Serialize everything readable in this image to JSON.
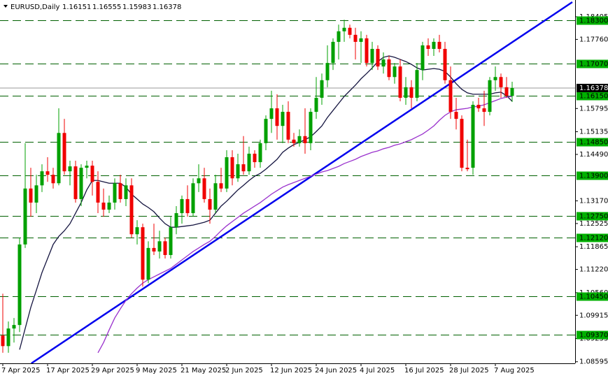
{
  "chart_data": {
    "type": "candlestick",
    "title": "EURUSD,Daily",
    "categories": [
      "7 Apr 2025",
      null,
      null,
      null,
      null,
      null,
      null,
      null,
      "17 Apr 2025",
      null,
      null,
      null,
      null,
      null,
      null,
      null,
      "29 Apr 2025",
      null,
      null,
      null,
      null,
      null,
      null,
      null,
      "9 May 2025",
      null,
      null,
      null,
      null,
      null,
      null,
      null,
      "21 May 2025",
      null,
      null,
      null,
      null,
      null,
      null,
      null,
      "2 Jun 2025",
      null,
      null,
      null,
      null,
      null,
      null,
      null,
      "12 Jun 2025",
      null,
      null,
      null,
      null,
      null,
      null,
      null,
      "24 Jun 2025",
      null,
      null,
      null,
      null,
      null,
      null,
      null,
      "4 Jul 2025",
      null,
      null,
      null,
      null,
      null,
      null,
      null,
      "16 Jul 2025",
      null,
      null,
      null,
      null,
      null,
      null,
      null,
      "28 Jul 2025",
      null,
      null,
      null,
      null,
      null,
      null,
      null,
      "7 Aug 2025",
      null,
      null,
      null
    ],
    "open": [
      1.0934,
      1.0904,
      1.0954,
      1.0964,
      1.1193,
      1.1352,
      1.1312,
      1.1361,
      1.1401,
      1.1391,
      1.1367,
      1.151,
      1.1401,
      1.1415,
      1.1322,
      1.1411,
      1.1417,
      1.1371,
      1.1312,
      1.1292,
      1.1312,
      1.1367,
      1.1322,
      1.1361,
      1.1222,
      1.1242,
      1.1093,
      1.1183,
      1.1173,
      1.1202,
      1.1163,
      1.1242,
      1.1282,
      1.1322,
      1.1282,
      1.1367,
      1.1381,
      1.1322,
      1.1292,
      1.1367,
      1.1352,
      1.1441,
      1.1381,
      1.1421,
      1.1401,
      1.1451,
      1.1427,
      1.1481,
      1.155,
      1.158,
      1.153,
      1.157,
      1.1491,
      1.1481,
      1.1501,
      1.1481,
      1.157,
      1.161,
      1.166,
      1.1709,
      1.1769,
      1.1799,
      1.1809,
      1.1789,
      1.1769,
      1.1779,
      1.1709,
      1.1749,
      1.1699,
      1.1719,
      1.1669,
      1.1699,
      1.161,
      1.164,
      1.161,
      1.1689,
      1.1759,
      1.1749,
      1.1769,
      1.1749,
      1.166,
      1.157,
      1.155,
      1.1411,
      1.1411,
      1.159,
      1.158,
      1.157,
      1.166,
      1.1669,
      1.164,
      1.16151
    ],
    "high": [
      1.1053,
      1.0974,
      1.0984,
      1.1212,
      1.1481,
      1.1411,
      1.1391,
      1.1421,
      1.1441,
      1.1411,
      1.158,
      1.155,
      1.1431,
      1.1431,
      1.1421,
      1.1431,
      1.1431,
      1.1401,
      1.1352,
      1.1332,
      1.1381,
      1.1391,
      1.1381,
      1.1381,
      1.1262,
      1.1252,
      1.1202,
      1.1252,
      1.1232,
      1.1212,
      1.1272,
      1.1302,
      1.1332,
      1.1361,
      1.1381,
      1.1421,
      1.1411,
      1.1352,
      1.1391,
      1.1411,
      1.1461,
      1.1461,
      1.1451,
      1.1501,
      1.1471,
      1.1461,
      1.1491,
      1.156,
      1.163,
      1.162,
      1.159,
      1.16,
      1.151,
      1.152,
      1.158,
      1.158,
      1.1669,
      1.1679,
      1.1759,
      1.1779,
      1.1818,
      1.1832,
      1.1818,
      1.1809,
      1.1799,
      1.1789,
      1.1769,
      1.1759,
      1.1739,
      1.1729,
      1.1709,
      1.1719,
      1.1669,
      1.166,
      1.1709,
      1.1769,
      1.1779,
      1.1779,
      1.1789,
      1.1769,
      1.1699,
      1.161,
      1.156,
      1.1491,
      1.16,
      1.161,
      1.163,
      1.1669,
      1.1699,
      1.1679,
      1.1669,
      1.16555
    ],
    "low": [
      1.0885,
      1.0885,
      1.0914,
      1.0944,
      1.1183,
      1.1272,
      1.1282,
      1.1342,
      1.1371,
      1.1352,
      1.1361,
      1.1391,
      1.1361,
      1.1312,
      1.1302,
      1.1381,
      1.1332,
      1.1282,
      1.1272,
      1.1282,
      1.1292,
      1.1312,
      1.1302,
      1.1212,
      1.1193,
      1.1073,
      1.1083,
      1.1163,
      1.1153,
      1.1153,
      1.1153,
      1.1222,
      1.1252,
      1.1272,
      1.1272,
      1.1342,
      1.1312,
      1.1252,
      1.1282,
      1.1342,
      1.1342,
      1.1361,
      1.1371,
      1.1391,
      1.1391,
      1.1411,
      1.1411,
      1.1461,
      1.151,
      1.1491,
      1.1481,
      1.1481,
      1.1471,
      1.1471,
      1.1451,
      1.1461,
      1.155,
      1.159,
      1.164,
      1.1689,
      1.1719,
      1.1769,
      1.1779,
      1.1719,
      1.1709,
      1.1699,
      1.1689,
      1.1689,
      1.1679,
      1.166,
      1.165,
      1.16,
      1.159,
      1.158,
      1.16,
      1.166,
      1.1729,
      1.1729,
      1.1739,
      1.165,
      1.155,
      1.152,
      1.1401,
      1.1401,
      1.1391,
      1.157,
      1.153,
      1.156,
      1.163,
      1.161,
      1.161,
      1.15983
    ],
    "close": [
      1.0904,
      1.0954,
      1.0964,
      1.1193,
      1.1352,
      1.1312,
      1.1361,
      1.1401,
      1.1391,
      1.1367,
      1.151,
      1.1401,
      1.1415,
      1.1322,
      1.1411,
      1.1417,
      1.1371,
      1.1312,
      1.1292,
      1.1312,
      1.1367,
      1.1322,
      1.1361,
      1.1222,
      1.1242,
      1.1093,
      1.1183,
      1.1173,
      1.1202,
      1.1163,
      1.1242,
      1.1282,
      1.1322,
      1.1282,
      1.1367,
      1.1381,
      1.1322,
      1.1292,
      1.1367,
      1.1352,
      1.1441,
      1.1381,
      1.1421,
      1.1401,
      1.1451,
      1.1427,
      1.1481,
      1.155,
      1.158,
      1.153,
      1.157,
      1.1491,
      1.1481,
      1.1501,
      1.1481,
      1.157,
      1.161,
      1.166,
      1.1709,
      1.1769,
      1.1799,
      1.1809,
      1.1789,
      1.1769,
      1.1779,
      1.1709,
      1.1749,
      1.1699,
      1.1719,
      1.1669,
      1.1699,
      1.161,
      1.164,
      1.161,
      1.1689,
      1.1759,
      1.1749,
      1.1769,
      1.1749,
      1.166,
      1.157,
      1.155,
      1.1411,
      1.1407,
      1.159,
      1.158,
      1.157,
      1.166,
      1.1669,
      1.164,
      1.1616,
      1.16378
    ],
    "up_color": "#00a000",
    "down_color": "#f00000",
    "lines": [
      {
        "color": "#151540",
        "values": [
          null,
          null,
          null,
          1.0894,
          1.0954,
          1.1014,
          1.1063,
          1.1113,
          1.1153,
          1.1193,
          1.1216,
          1.1232,
          1.1252,
          1.1282,
          1.1312,
          1.1348,
          1.1375,
          1.1375,
          1.1371,
          1.1367,
          1.1367,
          1.1367,
          1.1356,
          1.1336,
          1.1322,
          1.1308,
          1.1298,
          1.1286,
          1.1268,
          1.1252,
          1.1242,
          1.1242,
          1.1244,
          1.1246,
          1.1248,
          1.1252,
          1.1256,
          1.1262,
          1.1282,
          1.1302,
          1.1316,
          1.1332,
          1.1348,
          1.1361,
          1.1375,
          1.1387,
          1.1395,
          1.1407,
          1.1421,
          1.1435,
          1.1455,
          1.1467,
          1.1477,
          1.1483,
          1.1491,
          1.1499,
          1.1514,
          1.153,
          1.1554,
          1.1574,
          1.1594,
          1.1614,
          1.163,
          1.1646,
          1.1664,
          1.1679,
          1.1695,
          1.1713,
          1.1725,
          1.1729,
          1.1725,
          1.1719,
          1.1713,
          1.1705,
          1.1695,
          1.1689,
          1.1691,
          1.1693,
          1.1691,
          1.1685,
          1.1669,
          1.165,
          1.1634,
          1.1624,
          1.162,
          1.162,
          1.162,
          1.162,
          1.1624,
          1.1626,
          1.1616,
          1.16
        ]
      },
      {
        "color": "#9a32cd",
        "values": [
          null,
          null,
          null,
          null,
          null,
          null,
          null,
          null,
          null,
          null,
          null,
          null,
          null,
          null,
          null,
          null,
          null,
          1.0885,
          1.0914,
          1.095,
          1.0984,
          1.101,
          1.1034,
          1.1053,
          1.1069,
          1.1083,
          1.1093,
          1.1101,
          1.1109,
          1.1117,
          1.1125,
          1.1137,
          1.1149,
          1.1161,
          1.1173,
          1.1183,
          1.1193,
          1.1202,
          1.1216,
          1.1232,
          1.1246,
          1.1258,
          1.127,
          1.1282,
          1.1292,
          1.1302,
          1.1312,
          1.1324,
          1.1336,
          1.1346,
          1.1356,
          1.1363,
          1.1369,
          1.1375,
          1.1381,
          1.1387,
          1.1393,
          1.1399,
          1.1403,
          1.1409,
          1.1415,
          1.1423,
          1.1429,
          1.1435,
          1.1443,
          1.1449,
          1.1455,
          1.1459,
          1.1465,
          1.1469,
          1.1475,
          1.1479,
          1.1485,
          1.1491,
          1.1499,
          1.1507,
          1.1518,
          1.153,
          1.1546,
          1.156,
          1.157,
          1.1576,
          1.1578,
          1.158,
          1.1584,
          1.1586,
          1.159,
          1.1596,
          1.1602,
          1.1608,
          1.1612,
          1.1614
        ]
      }
    ],
    "trendline": {
      "color": "#0000ee",
      "x": [
        5.1,
        101.75
      ],
      "values": [
        1.0855,
        1.1882
      ]
    },
    "levels": [
      {
        "value": 1.183,
        "label": "1.18300"
      },
      {
        "value": 1.1707,
        "label": "1.17070"
      },
      {
        "value": 1.1615,
        "label": "1.16150"
      },
      {
        "value": 1.1485,
        "label": "1.14850"
      },
      {
        "value": 1.139,
        "label": "1.13900"
      },
      {
        "value": 1.1275,
        "label": "1.12750"
      },
      {
        "value": 1.1212,
        "label": "1.12120"
      },
      {
        "value": 1.1045,
        "label": "1.10450"
      },
      {
        "value": 1.0937,
        "label": "1.09370"
      }
    ],
    "level_color": "#006000",
    "level_label_color": "#00b000",
    "ylim": [
      1.0855,
      1.1888
    ],
    "yticks": [
      {
        "value": 1.18405,
        "label": "1.18405"
      },
      {
        "value": 1.1776,
        "label": "1.17760"
      },
      {
        "value": 1.15795,
        "label": "1.15795"
      },
      {
        "value": 1.15135,
        "label": "1.15135"
      },
      {
        "value": 1.1449,
        "label": "1.14490"
      },
      {
        "value": 1.1317,
        "label": "1.13170"
      },
      {
        "value": 1.12525,
        "label": "1.12525"
      },
      {
        "value": 1.11865,
        "label": "1.11865"
      },
      {
        "value": 1.1122,
        "label": "1.11220"
      },
      {
        "value": 1.1056,
        "label": "1.10560"
      },
      {
        "value": 1.09915,
        "label": "1.09915"
      },
      {
        "value": 1.09255,
        "label": "1.09255"
      },
      {
        "value": 1.08595,
        "label": "1.08595"
      }
    ]
  }
}
